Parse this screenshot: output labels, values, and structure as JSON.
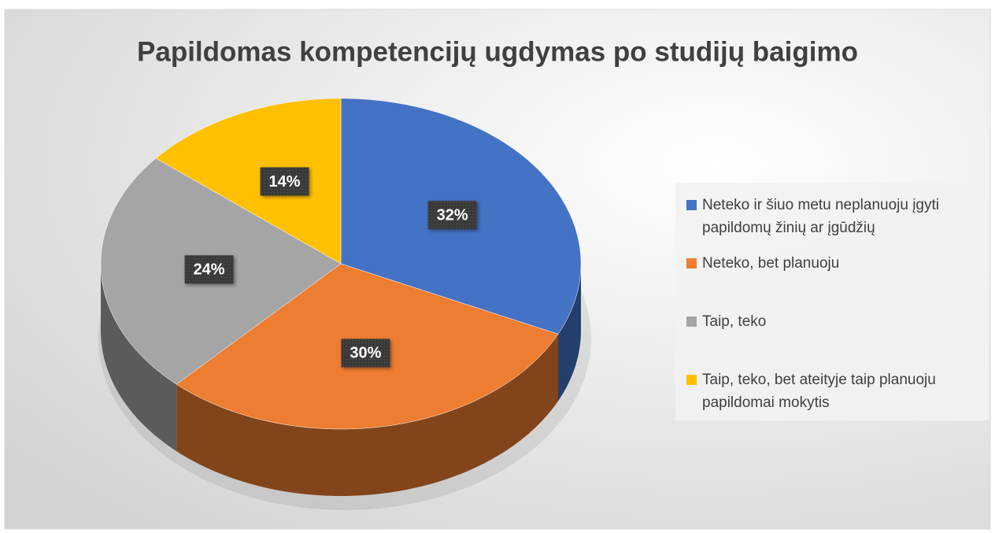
{
  "chart_data": {
    "type": "pie",
    "title": "Papildomas kompetencijų ugdymas po studijų baigimo",
    "categories": [
      "Neteko ir šiuo metu neplanuoju įgyti papildomų žinių ar įgūdžių",
      "Neteko, bet planuoju",
      "Taip, teko",
      "Taip, teko, bet ateityje taip planuoju papildomai mokytis"
    ],
    "values": [
      32,
      30,
      24,
      14
    ],
    "value_labels": [
      "32%",
      "30%",
      "24%",
      "14%"
    ],
    "colors": [
      "#4472c4",
      "#ed7d31",
      "#a5a5a5",
      "#ffc000"
    ],
    "legend": "right"
  }
}
